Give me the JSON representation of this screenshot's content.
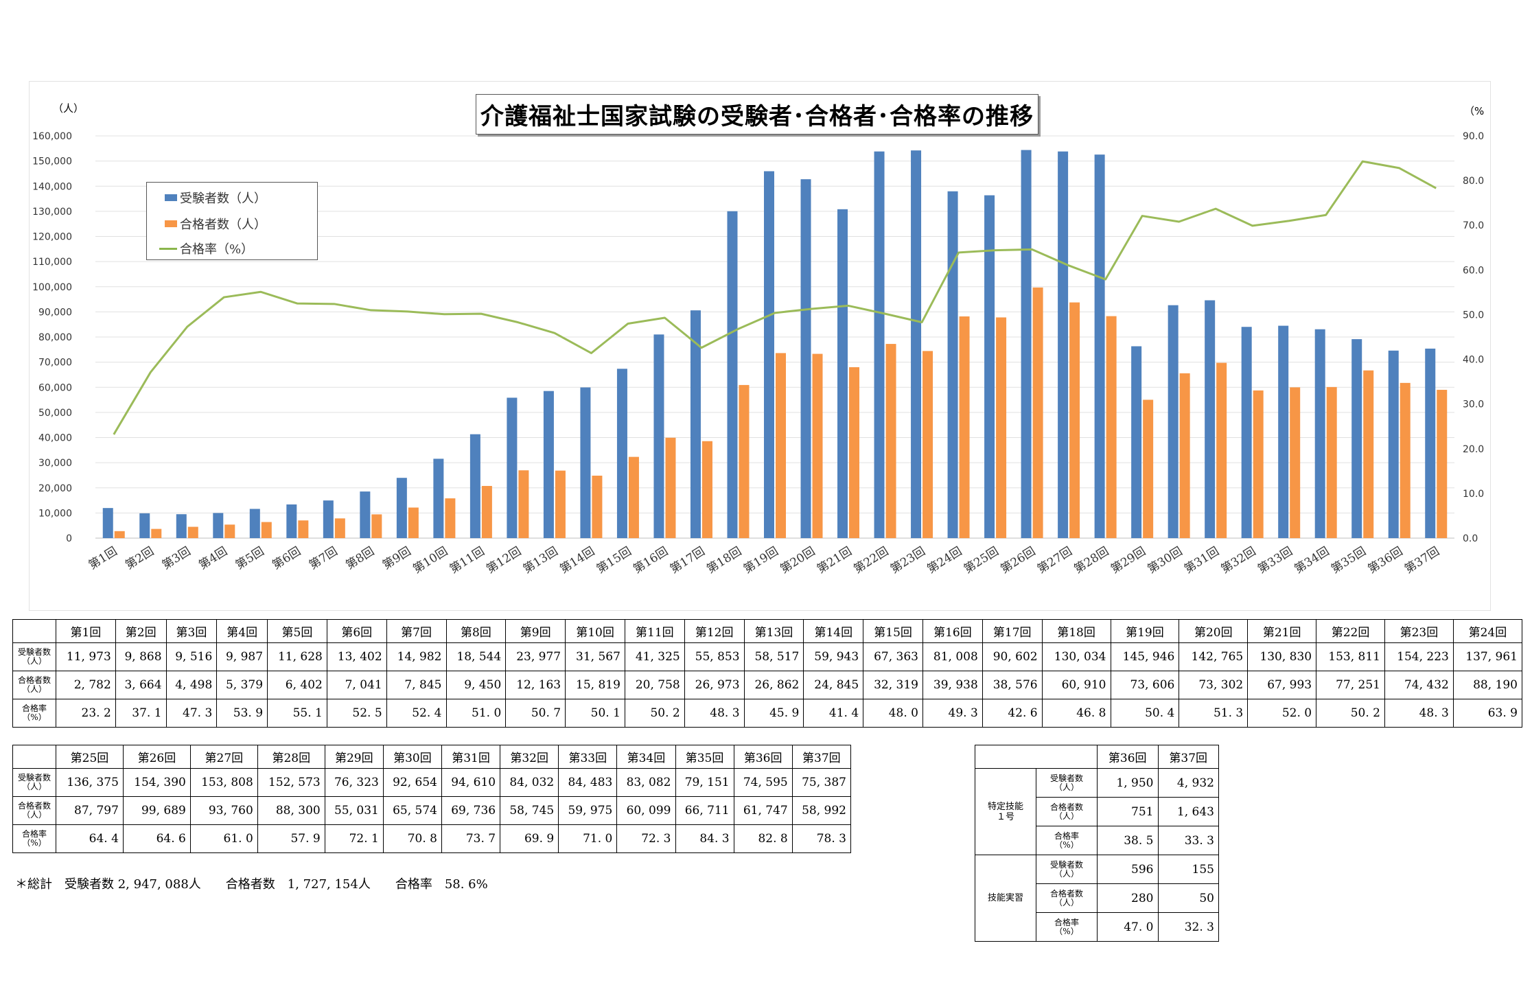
{
  "chart_data": {
    "type": "bar",
    "title": "介護福祉士国家試験の受験者･合格者･合格率の推移",
    "y_left_unit": "（人）",
    "y_right_unit": "（%",
    "ylim_left": [
      0,
      160000
    ],
    "ylim_right": [
      0,
      90
    ],
    "left_ticks": [
      "0",
      "10,000",
      "20,000",
      "30,000",
      "40,000",
      "50,000",
      "60,000",
      "70,000",
      "80,000",
      "90,000",
      "100,000",
      "110,000",
      "120,000",
      "130,000",
      "140,000",
      "150,000",
      "160,000"
    ],
    "right_ticks": [
      "0.0",
      "10.0",
      "20.0",
      "30.0",
      "40.0",
      "50.0",
      "60.0",
      "70.0",
      "80.0",
      "90.0"
    ],
    "grid": true,
    "legend_placement": "top-left",
    "categories": [
      "第1回",
      "第2回",
      "第3回",
      "第4回",
      "第5回",
      "第6回",
      "第7回",
      "第8回",
      "第9回",
      "第10回",
      "第11回",
      "第12回",
      "第13回",
      "第14回",
      "第15回",
      "第16回",
      "第17回",
      "第18回",
      "第19回",
      "第20回",
      "第21回",
      "第22回",
      "第23回",
      "第24回",
      "第25回",
      "第26回",
      "第27回",
      "第28回",
      "第29回",
      "第30回",
      "第31回",
      "第32回",
      "第33回",
      "第34回",
      "第35回",
      "第36回",
      "第37回"
    ],
    "series": [
      {
        "name": "受験者数（人）",
        "kind": "bar",
        "axis": "left",
        "color": "#4f81bd",
        "values": [
          11973,
          9868,
          9516,
          9987,
          11628,
          13402,
          14982,
          18544,
          23977,
          31567,
          41325,
          55853,
          58517,
          59943,
          67363,
          81008,
          90602,
          130034,
          145946,
          142765,
          130830,
          153811,
          154223,
          137961,
          136375,
          154390,
          153808,
          152573,
          76323,
          92654,
          94610,
          84032,
          84483,
          83082,
          79151,
          74595,
          75387
        ]
      },
      {
        "name": "合格者数（人）",
        "kind": "bar",
        "axis": "left",
        "color": "#f79646",
        "values": [
          2782,
          3664,
          4498,
          5379,
          6402,
          7041,
          7845,
          9450,
          12163,
          15819,
          20758,
          26973,
          26862,
          24845,
          32319,
          39938,
          38576,
          60910,
          73606,
          73302,
          67993,
          77251,
          74432,
          88190,
          87797,
          99689,
          93760,
          88300,
          55031,
          65574,
          69736,
          58745,
          59975,
          60099,
          66711,
          61747,
          58992
        ]
      },
      {
        "name": "合格率（%）",
        "kind": "line",
        "axis": "right",
        "color": "#9bbb59",
        "values": [
          23.2,
          37.1,
          47.3,
          53.9,
          55.1,
          52.5,
          52.4,
          51.0,
          50.7,
          50.1,
          50.2,
          48.3,
          45.9,
          41.4,
          48.0,
          49.3,
          42.6,
          46.8,
          50.4,
          51.3,
          52.0,
          50.2,
          48.3,
          63.9,
          64.4,
          64.6,
          61.0,
          57.9,
          72.1,
          70.8,
          73.7,
          69.9,
          71.0,
          72.3,
          84.3,
          82.8,
          78.3
        ]
      }
    ]
  },
  "table1": {
    "headers": [
      "第1回",
      "第2回",
      "第3回",
      "第4回",
      "第5回",
      "第6回",
      "第7回",
      "第8回",
      "第9回",
      "第10回",
      "第11回",
      "第12回",
      "第13回",
      "第14回",
      "第15回",
      "第16回",
      "第17回",
      "第18回",
      "第19回",
      "第20回",
      "第21回",
      "第22回",
      "第23回",
      "第24回"
    ],
    "rows": [
      {
        "label1": "受験者数",
        "label2": "（人）",
        "cls": "",
        "values": [
          "11, 973",
          "9, 868",
          "9, 516",
          "9, 987",
          "11, 628",
          "13, 402",
          "14, 982",
          "18, 544",
          "23, 977",
          "31, 567",
          "41, 325",
          "55, 853",
          "58, 517",
          "59, 943",
          "67, 363",
          "81, 008",
          "90, 602",
          "130, 034",
          "145, 946",
          "142, 765",
          "130, 830",
          "153, 811",
          "154, 223",
          "137, 961"
        ]
      },
      {
        "label1": "合格者数",
        "label2": "（人）",
        "cls": "",
        "values": [
          "2, 782",
          "3, 664",
          "4, 498",
          "5, 379",
          "6, 402",
          "7, 041",
          "7, 845",
          "9, 450",
          "12, 163",
          "15, 819",
          "20, 758",
          "26, 973",
          "26, 862",
          "24, 845",
          "32, 319",
          "39, 938",
          "38, 576",
          "60, 910",
          "73, 606",
          "73, 302",
          "67, 993",
          "77, 251",
          "74, 432",
          "88, 190"
        ]
      },
      {
        "label1": "合格率",
        "label2": "（%）",
        "cls": "pct",
        "values": [
          "23. 2",
          "37. 1",
          "47. 3",
          "53. 9",
          "55. 1",
          "52. 5",
          "52. 4",
          "51. 0",
          "50. 7",
          "50. 1",
          "50. 2",
          "48. 3",
          "45. 9",
          "41. 4",
          "48. 0",
          "49. 3",
          "42. 6",
          "46. 8",
          "50. 4",
          "51. 3",
          "52. 0",
          "50. 2",
          "48. 3",
          "63. 9"
        ]
      }
    ]
  },
  "table2": {
    "headers": [
      "第25回",
      "第26回",
      "第27回",
      "第28回",
      "第29回",
      "第30回",
      "第31回",
      "第32回",
      "第33回",
      "第34回",
      "第35回",
      "第36回",
      "第37回"
    ],
    "rows": [
      {
        "label1": "受験者数",
        "label2": "（人）",
        "cls": "",
        "values": [
          "136, 375",
          "154, 390",
          "153, 808",
          "152, 573",
          "76, 323",
          "92, 654",
          "94, 610",
          "84, 032",
          "84, 483",
          "83, 082",
          "79, 151",
          "74, 595",
          "75, 387"
        ]
      },
      {
        "label1": "合格者数",
        "label2": "（人）",
        "cls": "",
        "values": [
          "87, 797",
          "99, 689",
          "93, 760",
          "88, 300",
          "55, 031",
          "65, 574",
          "69, 736",
          "58, 745",
          "59, 975",
          "60, 099",
          "66, 711",
          "61, 747",
          "58, 992"
        ]
      },
      {
        "label1": "合格率",
        "label2": "（%）",
        "cls": "pct",
        "values": [
          "64. 4",
          "64. 6",
          "61. 0",
          "57. 9",
          "72. 1",
          "70. 8",
          "73. 7",
          "69. 9",
          "71. 0",
          "72. 3",
          "84. 3",
          "82. 8",
          "78. 3"
        ]
      }
    ]
  },
  "total_note": "＊総計　受験者数 2, 947, 088人　　合格者数　1, 727, 154人　　合格率　58. 6%",
  "table3": {
    "headers": [
      "第36回",
      "第37回"
    ],
    "groups": [
      {
        "name1": "特定技能",
        "name2": "１号",
        "rows": [
          {
            "label1": "受験者数",
            "label2": "（人）",
            "values": [
              "1, 950",
              "4, 932"
            ]
          },
          {
            "label1": "合格者数",
            "label2": "（人）",
            "values": [
              "751",
              "1, 643"
            ]
          },
          {
            "label1": "合格率",
            "label2": "（%）",
            "values": [
              "38. 5",
              "33. 3"
            ]
          }
        ]
      },
      {
        "name1": "技能実習",
        "name2": "",
        "rows": [
          {
            "label1": "受験者数",
            "label2": "（人）",
            "values": [
              "596",
              "155"
            ]
          },
          {
            "label1": "合格者数",
            "label2": "（人）",
            "values": [
              "280",
              "50"
            ]
          },
          {
            "label1": "合格率",
            "label2": "（%）",
            "values": [
              "47. 0",
              "32. 3"
            ]
          }
        ]
      }
    ]
  }
}
